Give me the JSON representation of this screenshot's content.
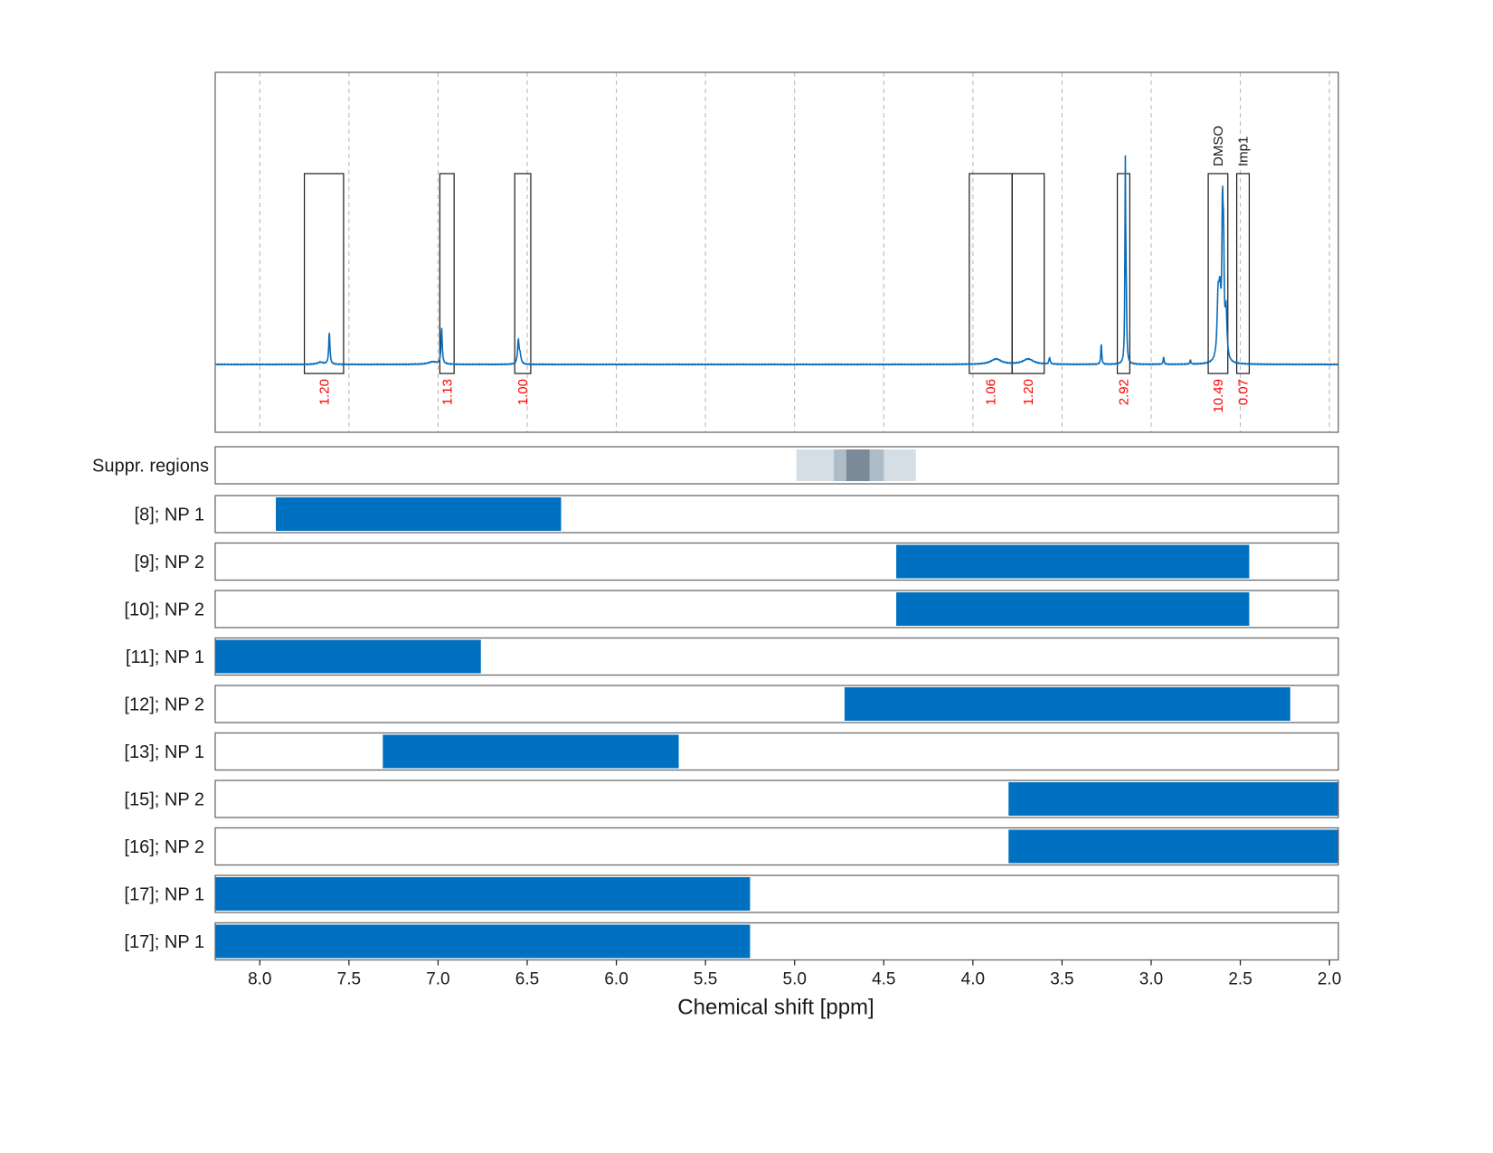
{
  "colors": {
    "spectrum": "#0b6cb8",
    "bar": "#0070c0",
    "integral_text": "#ff0000",
    "frame": "#6b6b6b",
    "grid": "#b5b5b5",
    "suppr_light": "#d5dee5",
    "suppr_mid": "#aebcc7",
    "suppr_dark": "#7b8a96"
  },
  "chart_data": {
    "type": "nmr_spectrum_with_ranges",
    "xlabel": "Chemical shift [ppm]",
    "xlim": [
      8.25,
      1.95
    ],
    "xaxis_reversed": true,
    "grid": true,
    "x_ticks": [
      8.0,
      7.5,
      7.0,
      6.5,
      6.0,
      5.5,
      5.0,
      4.5,
      4.0,
      3.5,
      3.0,
      2.5,
      2.0
    ],
    "x_tick_labels": [
      "8.0",
      "7.5",
      "7.0",
      "6.5",
      "6.0",
      "5.5",
      "5.0",
      "4.5",
      "4.0",
      "3.5",
      "3.0",
      "2.5",
      "2.0"
    ],
    "spectrum_peaks": [
      {
        "ppm": 7.61,
        "height": 0.15,
        "width": 0.004
      },
      {
        "ppm": 7.66,
        "height": 0.01,
        "width": 0.02
      },
      {
        "ppm": 6.98,
        "height": 0.17,
        "width": 0.004
      },
      {
        "ppm": 7.03,
        "height": 0.012,
        "width": 0.03
      },
      {
        "ppm": 6.55,
        "height": 0.11,
        "width": 0.005
      },
      {
        "ppm": 6.54,
        "height": 0.04,
        "width": 0.006
      },
      {
        "ppm": 3.87,
        "height": 0.025,
        "width": 0.035
      },
      {
        "ppm": 3.69,
        "height": 0.025,
        "width": 0.035
      },
      {
        "ppm": 3.57,
        "height": 0.03,
        "width": 0.004
      },
      {
        "ppm": 3.28,
        "height": 0.1,
        "width": 0.003
      },
      {
        "ppm": 3.145,
        "height": 0.91,
        "width": 0.0025
      },
      {
        "ppm": 3.14,
        "height": 0.28,
        "width": 0.003
      },
      {
        "ppm": 2.93,
        "height": 0.035,
        "width": 0.003
      },
      {
        "ppm": 2.78,
        "height": 0.02,
        "width": 0.003
      },
      {
        "ppm": 2.615,
        "height": 0.29,
        "width": 0.008
      },
      {
        "ppm": 2.625,
        "height": 0.24,
        "width": 0.006
      },
      {
        "ppm": 2.6,
        "height": 0.62,
        "width": 0.004
      },
      {
        "ppm": 2.594,
        "height": 0.44,
        "width": 0.004
      },
      {
        "ppm": 2.58,
        "height": 0.22,
        "width": 0.006
      }
    ],
    "integration_regions": [
      {
        "from": 7.75,
        "to": 7.53,
        "integral": "1.20"
      },
      {
        "from": 6.99,
        "to": 6.91,
        "integral": "1.13"
      },
      {
        "from": 6.57,
        "to": 6.48,
        "integral": "1.00"
      },
      {
        "from": 4.02,
        "to": 3.78,
        "integral": "1.06"
      },
      {
        "from": 3.78,
        "to": 3.6,
        "integral": "1.20"
      },
      {
        "from": 3.19,
        "to": 3.12,
        "integral": "2.92"
      },
      {
        "from": 2.68,
        "to": 2.57,
        "integral": "10.49",
        "label": "DMSO"
      },
      {
        "from": 2.52,
        "to": 2.45,
        "integral": "0.07",
        "label": "Imp1"
      }
    ],
    "suppression": {
      "label": "Suppr. regions",
      "bands": [
        {
          "from": 4.99,
          "to": 4.32,
          "level": "light"
        },
        {
          "from": 4.78,
          "to": 4.5,
          "level": "mid"
        },
        {
          "from": 4.71,
          "to": 4.58,
          "level": "dark"
        }
      ]
    },
    "ranges": [
      {
        "label": "[8]; NP 1",
        "from": 7.91,
        "to": 6.31
      },
      {
        "label": "[9]; NP 2",
        "from": 4.43,
        "to": 2.45
      },
      {
        "label": "[10]; NP 2",
        "from": 4.43,
        "to": 2.45
      },
      {
        "label": "[11]; NP 1",
        "from": 8.25,
        "to": 6.76
      },
      {
        "label": "[12]; NP 2",
        "from": 4.72,
        "to": 2.22
      },
      {
        "label": "[13]; NP 1",
        "from": 7.31,
        "to": 5.65
      },
      {
        "label": "[15]; NP 2",
        "from": 3.8,
        "to": 1.95
      },
      {
        "label": "[16]; NP 2",
        "from": 3.8,
        "to": 1.95
      },
      {
        "label": "[17]; NP 1",
        "from": 8.25,
        "to": 5.25
      },
      {
        "label": "[17]; NP 1",
        "from": 8.25,
        "to": 5.25
      }
    ]
  }
}
